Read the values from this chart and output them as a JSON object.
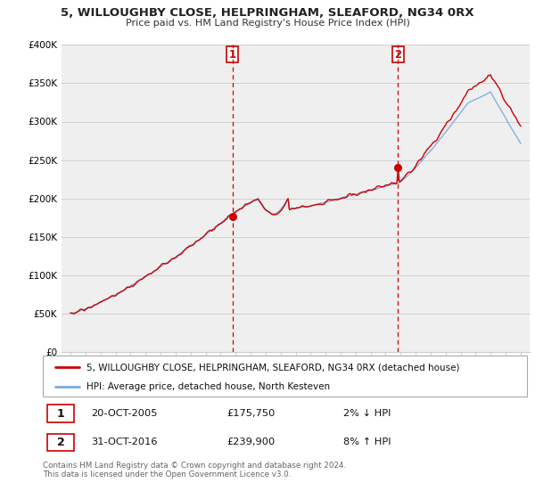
{
  "title": "5, WILLOUGHBY CLOSE, HELPRINGHAM, SLEAFORD, NG34 0RX",
  "subtitle": "Price paid vs. HM Land Registry's House Price Index (HPI)",
  "red_line_label": "5, WILLOUGHBY CLOSE, HELPRINGHAM, SLEAFORD, NG34 0RX (detached house)",
  "blue_line_label": "HPI: Average price, detached house, North Kesteven",
  "sale1_date": "20-OCT-2005",
  "sale1_price": "£175,750",
  "sale1_hpi": "2% ↓ HPI",
  "sale2_date": "31-OCT-2016",
  "sale2_price": "£239,900",
  "sale2_hpi": "8% ↑ HPI",
  "footer": "Contains HM Land Registry data © Crown copyright and database right 2024.\nThis data is licensed under the Open Government Licence v3.0.",
  "ylim": [
    0,
    400000
  ],
  "yticks": [
    0,
    50000,
    100000,
    150000,
    200000,
    250000,
    300000,
    350000,
    400000
  ],
  "ytick_labels": [
    "£0",
    "£50K",
    "£100K",
    "£150K",
    "£200K",
    "£250K",
    "£300K",
    "£350K",
    "£400K"
  ],
  "sale1_year": 2005.8,
  "sale2_year": 2016.83,
  "sale1_value": 175750,
  "sale2_value": 239900,
  "background_color": "#ffffff",
  "plot_bg_color": "#efefef",
  "red_color": "#cc0000",
  "blue_color": "#7aabe0",
  "grid_color": "#cccccc"
}
